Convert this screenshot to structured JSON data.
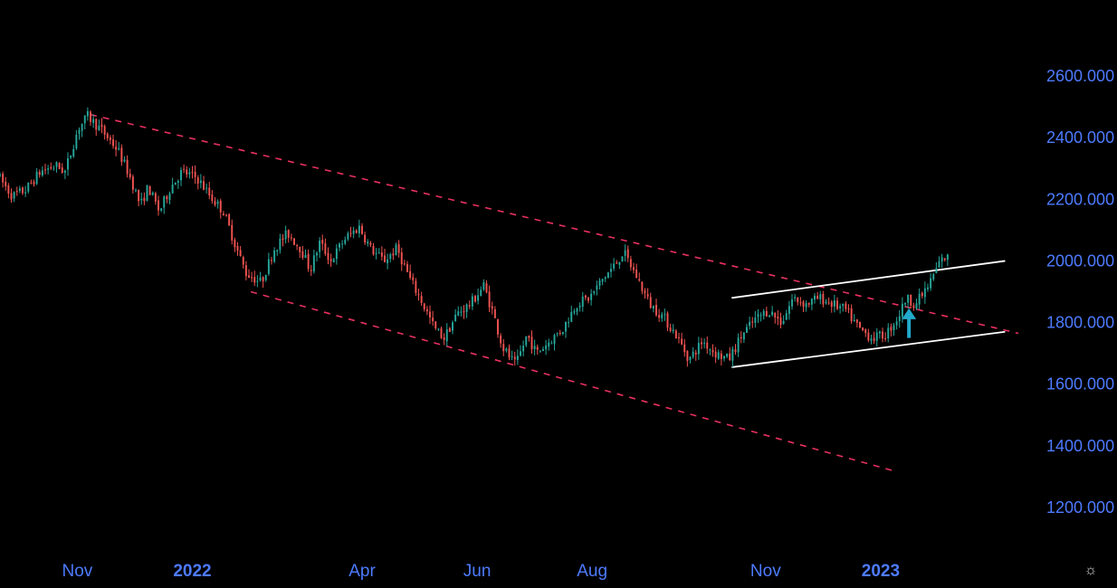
{
  "chart_data": {
    "type": "candlestick",
    "y_axis": {
      "ticks": [
        "2600.000",
        "2400.000",
        "2200.000",
        "2000.000",
        "1800.000",
        "1600.000",
        "1400.000",
        "1200.000"
      ],
      "tick_values": [
        2600,
        2400,
        2200,
        2000,
        1800,
        1600,
        1400,
        1200
      ],
      "range": [
        1050,
        2700
      ],
      "position": "right"
    },
    "x_axis": {
      "ticks": [
        {
          "label": "Nov",
          "date": "2021-11-01",
          "bold": false
        },
        {
          "label": "2022",
          "date": "2022-01-01",
          "bold": true
        },
        {
          "label": "Apr",
          "date": "2022-04-01",
          "bold": false
        },
        {
          "label": "Jun",
          "date": "2022-06-01",
          "bold": false
        },
        {
          "label": "Aug",
          "date": "2022-08-01",
          "bold": false
        },
        {
          "label": "Nov",
          "date": "2022-11-01",
          "bold": false
        },
        {
          "label": "2023",
          "date": "2023-01-01",
          "bold": true
        }
      ],
      "range": [
        "2021-09-21",
        "2023-03-15"
      ]
    },
    "price_path": [
      [
        "2021-09-21",
        2280
      ],
      [
        "2021-09-29",
        2210
      ],
      [
        "2021-10-06",
        2230
      ],
      [
        "2021-10-14",
        2290
      ],
      [
        "2021-10-22",
        2310
      ],
      [
        "2021-10-27",
        2290
      ],
      [
        "2021-11-03",
        2430
      ],
      [
        "2021-11-08",
        2470
      ],
      [
        "2021-11-16",
        2420
      ],
      [
        "2021-11-24",
        2360
      ],
      [
        "2021-11-30",
        2280
      ],
      [
        "2021-12-06",
        2180
      ],
      [
        "2021-12-10",
        2240
      ],
      [
        "2021-12-16",
        2160
      ],
      [
        "2021-12-22",
        2240
      ],
      [
        "2021-12-28",
        2290
      ],
      [
        "2022-01-05",
        2270
      ],
      [
        "2022-01-12",
        2210
      ],
      [
        "2022-01-19",
        2160
      ],
      [
        "2022-01-26",
        2040
      ],
      [
        "2022-01-31",
        1960
      ],
      [
        "2022-02-08",
        1930
      ],
      [
        "2022-02-15",
        2040
      ],
      [
        "2022-02-22",
        2090
      ],
      [
        "2022-03-01",
        2040
      ],
      [
        "2022-03-06",
        1970
      ],
      [
        "2022-03-11",
        2060
      ],
      [
        "2022-03-17",
        2000
      ],
      [
        "2022-03-24",
        2070
      ],
      [
        "2022-04-01",
        2110
      ],
      [
        "2022-04-07",
        2040
      ],
      [
        "2022-04-14",
        2000
      ],
      [
        "2022-04-21",
        2040
      ],
      [
        "2022-04-28",
        1940
      ],
      [
        "2022-05-04",
        1870
      ],
      [
        "2022-05-11",
        1780
      ],
      [
        "2022-05-16",
        1750
      ],
      [
        "2022-05-23",
        1830
      ],
      [
        "2022-05-30",
        1860
      ],
      [
        "2022-06-06",
        1920
      ],
      [
        "2022-06-11",
        1830
      ],
      [
        "2022-06-16",
        1720
      ],
      [
        "2022-06-23",
        1660
      ],
      [
        "2022-06-29",
        1760
      ],
      [
        "2022-07-04",
        1700
      ],
      [
        "2022-07-11",
        1740
      ],
      [
        "2022-07-18",
        1780
      ],
      [
        "2022-07-25",
        1860
      ],
      [
        "2022-08-01",
        1880
      ],
      [
        "2022-08-08",
        1940
      ],
      [
        "2022-08-15",
        1990
      ],
      [
        "2022-08-19",
        2030
      ],
      [
        "2022-08-26",
        1950
      ],
      [
        "2022-09-02",
        1860
      ],
      [
        "2022-09-09",
        1820
      ],
      [
        "2022-09-16",
        1760
      ],
      [
        "2022-09-23",
        1680
      ],
      [
        "2022-09-30",
        1740
      ],
      [
        "2022-10-07",
        1700
      ],
      [
        "2022-10-14",
        1680
      ],
      [
        "2022-10-21",
        1760
      ],
      [
        "2022-10-28",
        1810
      ],
      [
        "2022-11-04",
        1840
      ],
      [
        "2022-11-11",
        1800
      ],
      [
        "2022-11-17",
        1880
      ],
      [
        "2022-11-24",
        1860
      ],
      [
        "2022-12-01",
        1880
      ],
      [
        "2022-12-08",
        1860
      ],
      [
        "2022-12-15",
        1840
      ],
      [
        "2022-12-22",
        1780
      ],
      [
        "2022-12-29",
        1750
      ],
      [
        "2023-01-05",
        1760
      ],
      [
        "2023-01-12",
        1820
      ],
      [
        "2023-01-16",
        1880
      ],
      [
        "2023-01-21",
        1860
      ],
      [
        "2023-01-28",
        1920
      ],
      [
        "2023-02-03",
        2000
      ],
      [
        "2023-02-06",
        2010
      ]
    ],
    "candle_interval_days": 1.5,
    "colors": {
      "up": "#26a69a",
      "down": "#ef5350",
      "background": "#000000",
      "axis_text": "#4d7bff",
      "wedge_lines": "#e8305f",
      "channel_lines": "#ffffff",
      "arrow": "#22aacc"
    },
    "annotations": {
      "wedge_upper": {
        "from": [
          "2021-11-08",
          2475
        ],
        "to": [
          "2023-03-15",
          1765
        ]
      },
      "wedge_lower": {
        "from": [
          "2022-02-01",
          1900
        ],
        "to": [
          "2023-01-10",
          1315
        ]
      },
      "channel_upper": {
        "from": [
          "2022-10-14",
          1880
        ],
        "to": [
          "2023-03-08",
          2000
        ]
      },
      "channel_lower": {
        "from": [
          "2022-10-14",
          1655
        ],
        "to": [
          "2023-03-08",
          1770
        ]
      },
      "arrow_up": {
        "date": "2023-01-16",
        "from": 1750,
        "to": 1840
      }
    },
    "grid": false,
    "legend": "none"
  },
  "ui": {
    "settings_icon": "gear-icon",
    "settings_glyph": "☼"
  }
}
